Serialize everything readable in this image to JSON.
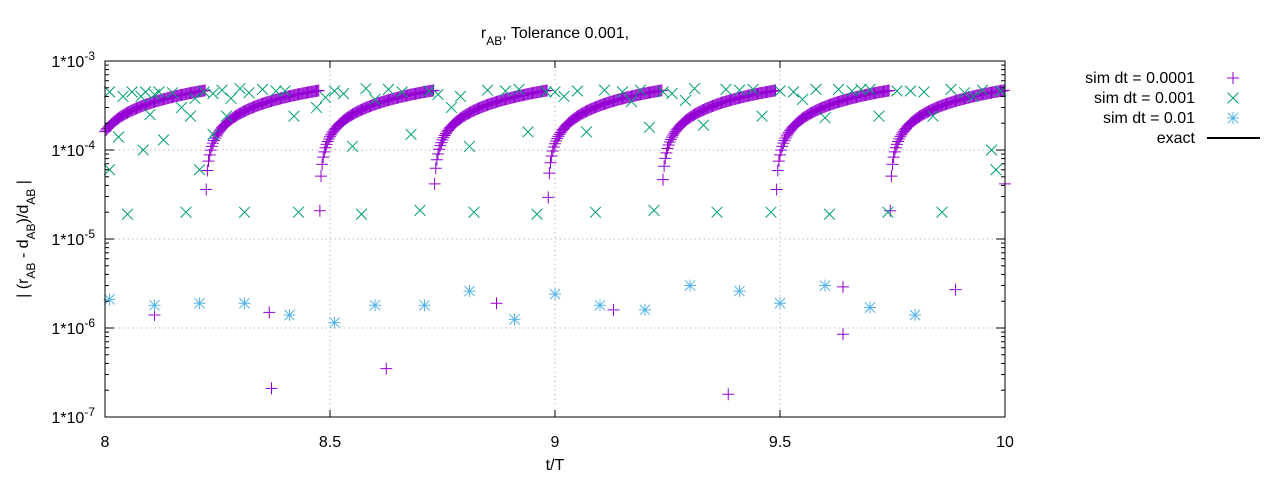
{
  "chart_data": {
    "type": "scatter",
    "title": "r_AB, Tolerance 0.001,",
    "title_parts": {
      "main": "r",
      "sub": "AB",
      "rest": ", Tolerance 0.001,"
    },
    "xlabel": "t/T",
    "ylabel_parts": [
      "| (r",
      "AB",
      " - d",
      "AB",
      ")/d",
      "AB",
      " |"
    ],
    "y_scale": "log",
    "xlim": [
      8,
      10
    ],
    "ylim": [
      1e-07,
      0.001
    ],
    "x_ticks": [
      8,
      8.5,
      9,
      9.5,
      10
    ],
    "x_tick_labels": [
      "8",
      "8.5",
      "9",
      "9.5",
      "10"
    ],
    "y_ticks": [
      1e-07,
      1e-06,
      1e-05,
      0.0001,
      0.001
    ],
    "y_tick_bases": [
      "1*10",
      "1*10",
      "1*10",
      "1*10",
      "1*10"
    ],
    "y_tick_exponents": [
      "-7",
      "-6",
      "-5",
      "-4",
      "-3"
    ],
    "grid": true,
    "legend_position": "outside-right",
    "series": [
      {
        "name": "sim dt = 0.0001",
        "marker": "plus",
        "color": "#9400d3",
        "curve": {
          "period": 0.2535,
          "phase": 0.1115,
          "k": 0.000468,
          "x_step": 0.0025
        },
        "extra_points": [
          [
            8.11,
            1.4e-06
          ],
          [
            8.365,
            1.5e-06
          ],
          [
            8.37,
            2.1e-07
          ],
          [
            8.625,
            3.5e-07
          ],
          [
            8.87,
            1.9e-06
          ],
          [
            9.13,
            1.6e-06
          ],
          [
            9.385,
            1.8e-07
          ],
          [
            9.64,
            8.5e-07
          ],
          [
            9.64,
            2.9e-06
          ],
          [
            9.89,
            2.7e-06
          ]
        ]
      },
      {
        "name": "sim dt = 0.001",
        "marker": "cross",
        "color": "#009e73",
        "points": [
          [
            8.01,
            6e-05
          ],
          [
            8.01,
            0.00045
          ],
          [
            8.04,
            0.0004
          ],
          [
            8.06,
            0.00045
          ],
          [
            8.08,
            0.0004
          ],
          [
            8.085,
            0.0001
          ],
          [
            8.09,
            0.00045
          ],
          [
            8.05,
            1.9e-05
          ],
          [
            8.03,
            0.00014
          ],
          [
            8.1,
            0.00025
          ],
          [
            8.12,
            0.00045
          ],
          [
            8.15,
            0.00044
          ],
          [
            8.17,
            0.0003
          ],
          [
            8.19,
            0.00024
          ],
          [
            8.2,
            0.00038
          ],
          [
            8.22,
            0.00045
          ],
          [
            8.24,
            0.00043
          ],
          [
            8.26,
            0.00047
          ],
          [
            8.28,
            0.00038
          ],
          [
            8.3,
            0.00049
          ],
          [
            8.32,
            0.00044
          ],
          [
            8.11,
            0.00042
          ],
          [
            8.13,
            0.00013
          ],
          [
            8.18,
            2e-05
          ],
          [
            8.21,
            6e-05
          ],
          [
            8.24,
            0.00015
          ],
          [
            8.27,
            0.00024
          ],
          [
            8.31,
            2e-05
          ],
          [
            8.35,
            0.00048
          ],
          [
            8.38,
            0.00046
          ],
          [
            8.42,
            0.00024
          ],
          [
            8.4,
            0.00046
          ],
          [
            8.43,
            2e-05
          ],
          [
            8.47,
            0.0003
          ],
          [
            8.49,
            0.00039
          ],
          [
            8.51,
            0.00046
          ],
          [
            8.53,
            0.00043
          ],
          [
            8.55,
            0.00011
          ],
          [
            8.57,
            1.9e-05
          ],
          [
            8.58,
            0.00049
          ],
          [
            8.6,
            0.00037
          ],
          [
            8.63,
            0.00048
          ],
          [
            8.66,
            0.00045
          ],
          [
            8.68,
            0.00015
          ],
          [
            8.7,
            2.1e-05
          ],
          [
            8.72,
            0.00046
          ],
          [
            8.74,
            0.00042
          ],
          [
            8.77,
            0.0003
          ],
          [
            8.79,
            0.0004
          ],
          [
            8.81,
            0.00011
          ],
          [
            8.82,
            2e-05
          ],
          [
            8.85,
            0.00047
          ],
          [
            8.89,
            0.00046
          ],
          [
            8.92,
            0.00048
          ],
          [
            8.94,
            0.00016
          ],
          [
            8.96,
            1.9e-05
          ],
          [
            8.98,
            0.00045
          ],
          [
            9.0,
            0.00045
          ],
          [
            9.02,
            0.0004
          ],
          [
            9.05,
            0.00046
          ],
          [
            9.07,
            0.00016
          ],
          [
            9.09,
            2e-05
          ],
          [
            9.11,
            0.00047
          ],
          [
            9.15,
            0.00045
          ],
          [
            9.17,
            0.00035
          ],
          [
            9.19,
            0.00047
          ],
          [
            9.21,
            0.00018
          ],
          [
            9.22,
            2.1e-05
          ],
          [
            9.24,
            0.00045
          ],
          [
            9.26,
            0.00043
          ],
          [
            9.29,
            0.00036
          ],
          [
            9.31,
            0.00049
          ],
          [
            9.33,
            0.00019
          ],
          [
            9.36,
            2e-05
          ],
          [
            9.38,
            0.00048
          ],
          [
            9.41,
            0.00047
          ],
          [
            9.44,
            0.00048
          ],
          [
            9.46,
            0.00024
          ],
          [
            9.48,
            2e-05
          ],
          [
            9.5,
            0.00046
          ],
          [
            9.53,
            0.00045
          ],
          [
            9.55,
            0.00037
          ],
          [
            9.58,
            0.00048
          ],
          [
            9.6,
            0.00023
          ],
          [
            9.61,
            1.9e-05
          ],
          [
            9.63,
            0.00048
          ],
          [
            9.66,
            0.00046
          ],
          [
            9.68,
            0.00048
          ],
          [
            9.7,
            0.00048
          ],
          [
            9.72,
            0.00024
          ],
          [
            9.74,
            2e-05
          ],
          [
            9.76,
            0.00046
          ],
          [
            9.79,
            0.00046
          ],
          [
            9.82,
            0.00045
          ],
          [
            9.84,
            0.00024
          ],
          [
            9.86,
            2e-05
          ],
          [
            9.88,
            0.00048
          ],
          [
            9.91,
            0.00044
          ],
          [
            9.93,
            0.0004
          ],
          [
            9.95,
            0.00047
          ],
          [
            9.97,
            0.0001
          ],
          [
            9.98,
            6e-05
          ],
          [
            9.99,
            0.00046
          ]
        ]
      },
      {
        "name": "sim dt = 0.01",
        "marker": "star",
        "color": "#56b4e9",
        "points": [
          [
            8.01,
            2.1e-06
          ],
          [
            8.11,
            1.8e-06
          ],
          [
            8.21,
            1.9e-06
          ],
          [
            8.31,
            1.9e-06
          ],
          [
            8.41,
            1.4e-06
          ],
          [
            8.51,
            1.15e-06
          ],
          [
            8.6,
            1.8e-06
          ],
          [
            8.71,
            1.8e-06
          ],
          [
            8.81,
            2.6e-06
          ],
          [
            8.91,
            1.25e-06
          ],
          [
            9.0,
            2.4e-06
          ],
          [
            9.1,
            1.8e-06
          ],
          [
            9.2,
            1.6e-06
          ],
          [
            9.3,
            3e-06
          ],
          [
            9.41,
            2.6e-06
          ],
          [
            9.5,
            1.9e-06
          ],
          [
            9.6,
            3e-06
          ],
          [
            9.7,
            1.7e-06
          ],
          [
            9.8,
            1.4e-06
          ]
        ]
      },
      {
        "name": "exact",
        "marker": "line",
        "color": "#000000",
        "points": []
      }
    ]
  }
}
